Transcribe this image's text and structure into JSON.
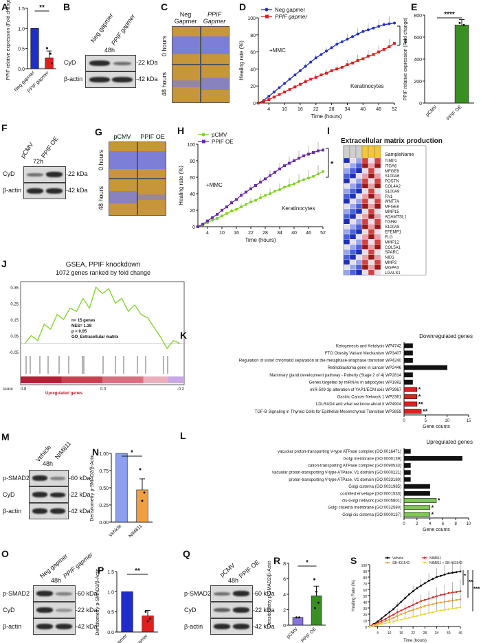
{
  "panels": {
    "A": "A",
    "B": "B",
    "C": "C",
    "D": "D",
    "E": "E",
    "F": "F",
    "G": "G",
    "H": "H",
    "I": "I",
    "J": "J",
    "K": "K",
    "L": "L",
    "M": "M",
    "N": "N",
    "O": "O",
    "P": "P",
    "Q": "Q",
    "R": "R",
    "S": "S"
  },
  "A": {
    "ylabel": "PPIF relative expression (Fold change)",
    "cats": [
      "Neg gapmer",
      "PPIF gapmer"
    ],
    "sig": "**",
    "yticks": [
      "0.0",
      "0.5",
      "1.0",
      "1.5"
    ]
  },
  "B": {
    "time": "48h",
    "cols": [
      "Neg gapmer",
      "PPIF gapmer"
    ],
    "rows": [
      "CyD",
      "β-actin"
    ],
    "kda": [
      "-22 kDa",
      "-42 kDa"
    ]
  },
  "C": {
    "cols": [
      "Neg Gapmer",
      "PPIF Gapmer"
    ],
    "rows": [
      "0 hours",
      "48 hours"
    ]
  },
  "D": {
    "legend": [
      "Neg gapmer",
      "PPIF gapmer"
    ],
    "ylabel": "Healing rate (%)",
    "xlabel": "Time (hours)",
    "note": "+MMC",
    "cell": "Keratinocytes",
    "sig": "**",
    "xticks": [
      "4",
      "10",
      "16",
      "22",
      "28",
      "34",
      "40",
      "46",
      "52"
    ],
    "yticks": [
      "0",
      "20",
      "40",
      "60",
      "80",
      "100"
    ]
  },
  "E": {
    "ylabel": "PPIF relative expression (Fold change)",
    "cats": [
      "pCMV",
      "PPIF OE"
    ],
    "sig": "****",
    "yticks": [
      "0",
      "200",
      "400",
      "600",
      "800"
    ]
  },
  "F": {
    "time": "72h",
    "cols": [
      "pCMV",
      "PPIF OE"
    ],
    "rows": [
      "CyD",
      "β-actin"
    ],
    "kda": [
      "-22 kDa",
      "-42 kDa"
    ]
  },
  "G": {
    "cols": [
      "pCMV",
      "PPIF OE"
    ],
    "rows": [
      "0 hours",
      "48 hours"
    ]
  },
  "H": {
    "legend": [
      "pCMV",
      "PPIF OE"
    ],
    "ylabel": "Healing rate (%)",
    "xlabel": "Time (hours)",
    "note": "+MMC",
    "cell": "Keratinocytes",
    "sig": "*",
    "xticks": [
      "4",
      "10",
      "16",
      "22",
      "28",
      "34",
      "40",
      "46",
      "52"
    ],
    "yticks": [
      "0",
      "20",
      "40",
      "60",
      "80",
      "100"
    ]
  },
  "I": {
    "title": "Extracellular matrix production",
    "header": "SampleName",
    "genes": [
      "TIMP1",
      "ITGA6",
      "MFGE8",
      "S100A6",
      "POSTN",
      "COL4A2",
      "S100A9",
      "FN1",
      "WNT7A",
      "MFGE8",
      "MMP15",
      "ADAMTSL1",
      "TGFBI",
      "S100A8",
      "EFEMP1",
      "FLG",
      "MMP12",
      "COL5A1",
      "SPARC",
      "NID1",
      "MMP2",
      "MGPA3",
      "LGALS1"
    ]
  },
  "J": {
    "title": "GSEA, PPIF knockdown",
    "subtitle": "1072 genes ranked by fold change",
    "stats": [
      "n= 15 genes",
      "NES= 1.38",
      "p < 0.05",
      "GO_Extracellular matrix"
    ],
    "yticks": [
      "0.35",
      "0.25",
      "0.15",
      "0.05",
      "-0.05"
    ],
    "score": [
      "score",
      "0.8",
      "0.0",
      "-0.2"
    ],
    "upreg": "Upregulated genes"
  },
  "K": {
    "title": "Downregulated genes",
    "xlabel": "Gene counts",
    "xticks": [
      "0",
      "5",
      "10",
      "15"
    ],
    "terms": [
      "Ketogenesis and Ketolysis WP4742",
      "FTO Obesity Variant Mechanism WP3407",
      "Regulation of sister chromatid separation at the metaphase-anaphase transition WP4240",
      "Retinoblastoma gene in cancer WP2446",
      "Mammary gland development pathway - Puberty (Stage 2 of 4) WP2814",
      "Genes targeted by miRNAs in adipocytes WP1992",
      "miR-509-3p alteration of YAP1/ECM axis WP3967",
      "Gastric Cancer Network 1 WP2361",
      "LDLRAD4 and what we know about it WP4904",
      "TGF-B Signaling in Thyroid Cells for Epithelial-Mesenchymal Transition WP3859"
    ],
    "values": [
      2,
      2,
      2,
      10,
      2,
      2,
      3,
      3,
      3,
      4
    ],
    "sig": [
      "",
      "",
      "",
      "",
      "",
      "",
      "*",
      "*",
      "**",
      "**"
    ]
  },
  "L": {
    "title": "Upregulated genes",
    "xlabel": "Gene counts",
    "xticks": [
      "0",
      "2",
      "4",
      "6",
      "8",
      "10"
    ],
    "terms": [
      "vacuolar proton-transporting V-type ATPase complex (GO:0016471)",
      "Golgi membrane (GO:0000139)",
      "cation-transporting ATPase complex (GO:0090533)",
      "vacuolar proton-transporting V-type ATPase, V1 domain (GO:0000221)",
      "proton-transporting V-type ATPase, V1 domain (GO:0033180)",
      "Golgi cisterna (GO:0031985)",
      "cornified envelope (GO:0001533)",
      "cis-Golgi network (GO:0005801)",
      "Golgi cisterna membrane (GO:0032580)",
      "Golgi cis cisterna (GO:0000137)"
    ],
    "values": [
      1,
      9,
      1,
      1,
      1,
      4,
      4,
      5,
      4,
      4
    ],
    "sig": [
      "",
      "",
      "",
      "",
      "",
      "",
      "",
      "*",
      "*",
      "*"
    ]
  },
  "M": {
    "time": "48h",
    "cols": [
      "Vehicle",
      "NIM811"
    ],
    "rows": [
      "p-SMAD2",
      "CyD",
      "β-actin"
    ],
    "kda": [
      "-60 kDa",
      "-22 kDa",
      "-42 kDa"
    ]
  },
  "N": {
    "ylabel": "Densitometry p-SMAD2/β-Actin",
    "cats": [
      "Vehicle",
      "NIM811"
    ],
    "sig": "*",
    "yticks": [
      "0.00",
      "0.25",
      "0.50",
      "0.75",
      "1.00"
    ]
  },
  "O": {
    "time": "48h",
    "cols": [
      "Neg gapmer",
      "PPIF gapmer"
    ],
    "rows": [
      "p-SMAD2",
      "CyD",
      "β-actin"
    ],
    "kda": [
      "-60 kDa",
      "-22 kDa",
      "-42 kDa"
    ]
  },
  "P": {
    "ylabel": "Densitometry p-SMAD2/β-Actin",
    "cats": [
      "Neg Gapmer",
      "PPIF Gapmer"
    ],
    "sig": "**",
    "yticks": [
      "0.0",
      "0.5",
      "1.0",
      "1.5"
    ]
  },
  "Q": {
    "time": "48h",
    "cols": [
      "pCMV",
      "PPIF OE"
    ],
    "rows": [
      "p-SMAD2",
      "CyD",
      "β-actin"
    ],
    "kda": [
      "-60 kDa",
      "-22 kDa",
      "-42 kDa"
    ]
  },
  "R": {
    "ylabel": "Densitometry p-SMAD2/β-Actin",
    "cats": [
      "pCMV",
      "PPIF OE"
    ],
    "sig": "*",
    "yticks": [
      "0",
      "2",
      "4",
      "6",
      "8"
    ]
  },
  "S": {
    "legend": [
      "Vehicle",
      "NIM811",
      "SB-431542",
      "NIM811 + SB-431542"
    ],
    "ylabel": "Healing Rate (%)",
    "xlabel": "Time (hours)",
    "sigs": [
      "*",
      "**",
      "***"
    ],
    "xticks": [
      "4",
      "10",
      "16",
      "22",
      "28",
      "34",
      "40",
      "46"
    ],
    "yticks": [
      "0",
      "10",
      "20",
      "30",
      "40",
      "50",
      "60",
      "70",
      "80",
      "90",
      "100"
    ]
  },
  "colors": {
    "blue": "#1f2ecb",
    "red": "#e02020",
    "green": "#3a8f22",
    "purple": "#6a2bb0",
    "lime": "#7ed321",
    "orange": "#f0a040",
    "lightblue": "#8da0f0",
    "black": "#000000"
  },
  "chart_data": [
    {
      "id": "A",
      "type": "bar",
      "categories": [
        "Neg gapmer",
        "PPIF gapmer"
      ],
      "values": [
        1.0,
        0.27
      ],
      "ylim": [
        0,
        1.5
      ]
    },
    {
      "id": "D",
      "type": "line",
      "x": [
        0,
        2,
        4,
        6,
        8,
        10,
        12,
        14,
        16,
        18,
        20,
        22,
        24,
        26,
        28,
        30,
        32,
        34,
        36,
        38,
        40,
        42,
        44,
        46,
        48,
        50,
        52
      ],
      "series": [
        {
          "name": "Neg gapmer",
          "values": [
            0,
            3,
            8,
            13,
            18,
            23,
            28,
            33,
            38,
            43,
            48,
            53,
            57,
            61,
            65,
            69,
            72,
            75,
            78,
            81,
            84,
            86,
            88,
            90,
            92,
            93,
            94
          ]
        },
        {
          "name": "PPIF gapmer",
          "values": [
            0,
            2,
            4,
            7,
            10,
            13,
            16,
            19,
            22,
            25,
            28,
            30,
            33,
            35,
            38,
            40,
            42,
            45,
            47,
            50,
            52,
            55,
            57,
            60,
            63,
            66,
            70
          ]
        }
      ],
      "ylim": [
        0,
        100
      ]
    },
    {
      "id": "E",
      "type": "bar",
      "categories": [
        "pCMV",
        "PPIF OE"
      ],
      "values": [
        1,
        710
      ],
      "ylim": [
        0,
        800
      ]
    },
    {
      "id": "H",
      "type": "line",
      "x": [
        0,
        2,
        4,
        6,
        8,
        10,
        12,
        14,
        16,
        18,
        20,
        22,
        24,
        26,
        28,
        30,
        32,
        34,
        36,
        38,
        40,
        42,
        44,
        46,
        48,
        50,
        52
      ],
      "series": [
        {
          "name": "pCMV",
          "values": [
            0,
            2,
            5,
            8,
            10,
            13,
            16,
            19,
            21,
            24,
            27,
            30,
            32,
            35,
            38,
            40,
            43,
            45,
            48,
            50,
            52,
            55,
            57,
            59,
            61,
            64,
            67
          ]
        },
        {
          "name": "PPIF OE",
          "values": [
            0,
            3,
            7,
            11,
            15,
            20,
            24,
            29,
            33,
            38,
            42,
            46,
            50,
            54,
            58,
            62,
            66,
            70,
            74,
            77,
            80,
            83,
            86,
            88,
            90,
            92,
            93
          ]
        }
      ],
      "ylim": [
        0,
        100
      ]
    },
    {
      "id": "K",
      "type": "bar",
      "categories": [
        "Ketogenesis and Ketolysis WP4742",
        "FTO Obesity Variant Mechanism WP3407",
        "Regulation of sister chromatid separation at the metaphase-anaphase transition WP4240",
        "Retinoblastoma gene in cancer WP2446",
        "Mammary gland development pathway - Puberty (Stage 2 of 4) WP2814",
        "Genes targeted by miRNAs in adipocytes WP1992",
        "miR-509-3p alteration of YAP1/ECM axis WP3967",
        "Gastric Cancer Network 1 WP2361",
        "LDLRAD4 and what we know about it WP4904",
        "TGF-B Signaling in Thyroid Cells for Epithelial-Mesenchymal Transition WP3859"
      ],
      "values": [
        2,
        2,
        2,
        10,
        2,
        2,
        3,
        3,
        3,
        4
      ],
      "xlim": [
        0,
        15
      ]
    },
    {
      "id": "L",
      "type": "bar",
      "categories": [
        "vacuolar proton-transporting V-type ATPase complex (GO:0016471)",
        "Golgi membrane (GO:0000139)",
        "cation-transporting ATPase complex (GO:0090533)",
        "vacuolar proton-transporting V-type ATPase, V1 domain (GO:0000221)",
        "proton-transporting V-type ATPase, V1 domain (GO:0033180)",
        "Golgi cisterna (GO:0031985)",
        "cornified envelope (GO:0001533)",
        "cis-Golgi network (GO:0005801)",
        "Golgi cisterna membrane (GO:0032580)",
        "Golgi cis cisterna (GO:0000137)"
      ],
      "values": [
        1,
        9,
        1,
        1,
        1,
        4,
        4,
        5,
        4,
        4
      ],
      "xlim": [
        0,
        10
      ]
    },
    {
      "id": "N",
      "type": "bar",
      "categories": [
        "Vehicle",
        "NIM811"
      ],
      "values": [
        1.0,
        0.47
      ],
      "ylim": [
        0,
        1.0
      ]
    },
    {
      "id": "P",
      "type": "bar",
      "categories": [
        "Neg Gapmer",
        "PPIF Gapmer"
      ],
      "values": [
        1.0,
        0.4
      ],
      "ylim": [
        0,
        1.5
      ]
    },
    {
      "id": "R",
      "type": "bar",
      "categories": [
        "pCMV",
        "PPIF OE"
      ],
      "values": [
        1.0,
        3.8
      ],
      "ylim": [
        0,
        8
      ]
    },
    {
      "id": "S",
      "type": "line",
      "x": [
        0,
        2,
        4,
        6,
        8,
        10,
        12,
        14,
        16,
        18,
        20,
        22,
        24,
        26,
        28,
        30,
        32,
        34,
        36,
        38,
        40,
        42,
        44,
        46
      ],
      "series": [
        {
          "name": "Vehicle",
          "values": [
            0,
            4,
            8,
            13,
            18,
            23,
            28,
            34,
            40,
            46,
            52,
            57,
            62,
            66,
            70,
            74,
            77,
            80,
            82,
            84,
            86,
            87,
            88,
            89
          ]
        },
        {
          "name": "NIM811",
          "values": [
            0,
            3,
            6,
            9,
            12,
            16,
            19,
            23,
            26,
            29,
            32,
            35,
            38,
            41,
            43,
            45,
            47,
            49,
            51,
            52,
            54,
            55,
            56,
            57
          ]
        },
        {
          "name": "SB-431542",
          "values": [
            0,
            2,
            4,
            6,
            9,
            11,
            14,
            17,
            20,
            22,
            25,
            27,
            29,
            31,
            33,
            35,
            36,
            38,
            39,
            40,
            41,
            42,
            43,
            44
          ]
        },
        {
          "name": "NIM811 + SB-431542",
          "values": [
            0,
            1,
            2,
            4,
            5,
            7,
            8,
            10,
            11,
            13,
            14,
            16,
            17,
            19,
            20,
            22,
            23,
            25,
            26,
            27,
            28,
            29,
            30,
            31
          ]
        }
      ],
      "ylim": [
        0,
        100
      ]
    }
  ]
}
